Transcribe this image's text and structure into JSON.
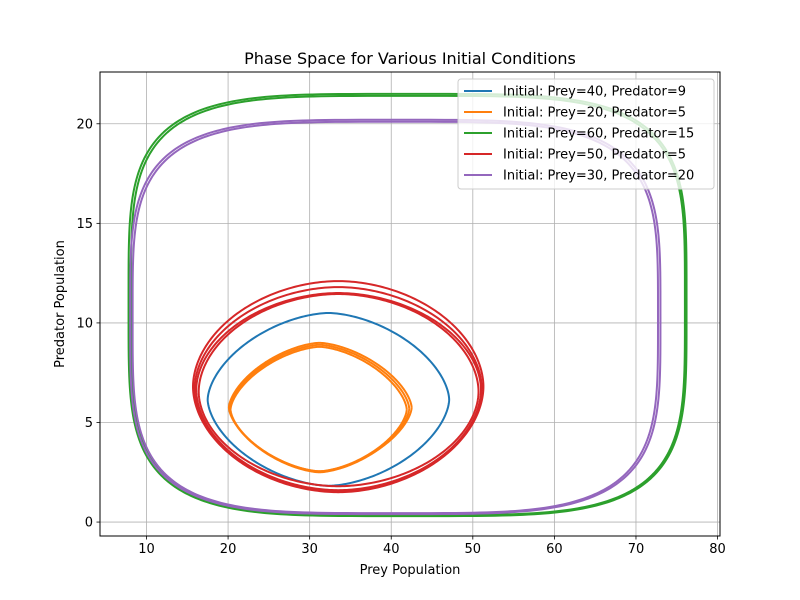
{
  "chart_data": {
    "type": "line",
    "title": "Phase Space for Various Initial Conditions",
    "xlabel": "Prey Population",
    "ylabel": "Predator Population",
    "xlim": [
      4.3,
      80.3
    ],
    "ylim": [
      -0.7,
      22.6
    ],
    "x_ticks": [
      10,
      20,
      30,
      40,
      50,
      60,
      70,
      80
    ],
    "y_ticks": [
      0,
      5,
      10,
      15,
      20
    ],
    "grid": true,
    "legend_position": "top-right",
    "series": [
      {
        "name": "Initial: Prey=40, Predator=9",
        "color": "#1f77b4",
        "loops": [
          {
            "cx": 32.3,
            "cy": 6.15,
            "ax": 14.8,
            "bx": 14.8,
            "ay": 4.35,
            "by": 4.33,
            "p": 1.7
          }
        ]
      },
      {
        "name": "Initial: Prey=20, Predator=5",
        "color": "#ff7f0e",
        "loops": [
          {
            "cx": 31.2,
            "cy": 5.7,
            "ax": 11.0,
            "bx": 11.0,
            "ay": 3.2,
            "by": 3.2,
            "p": 1.6
          },
          {
            "cx": 31.2,
            "cy": 5.65,
            "ax": 10.9,
            "bx": 10.7,
            "ay": 3.15,
            "by": 3.1,
            "p": 1.6
          },
          {
            "cx": 31.2,
            "cy": 5.75,
            "ax": 11.1,
            "bx": 11.3,
            "ay": 3.25,
            "by": 3.2,
            "p": 1.6
          }
        ]
      },
      {
        "name": "Initial: Prey=60, Predator=15",
        "color": "#2ca02c",
        "loops": [
          {
            "cx": 42.0,
            "cy": 10.9,
            "ax": 34.2,
            "bx": 34.2,
            "ay": 10.6,
            "by": 10.6,
            "p": 4.2
          },
          {
            "cx": 42.0,
            "cy": 10.9,
            "ax": 33.9,
            "bx": 34.0,
            "ay": 10.5,
            "by": 10.55,
            "p": 4.2
          }
        ]
      },
      {
        "name": "Initial: Prey=50, Predator=5",
        "color": "#d62728",
        "loops": [
          {
            "cx": 33.5,
            "cy": 6.8,
            "ax": 17.8,
            "bx": 17.8,
            "ay": 5.3,
            "by": 5.3,
            "p": 1.9
          },
          {
            "cx": 33.5,
            "cy": 6.65,
            "ax": 17.4,
            "bx": 17.5,
            "ay": 4.85,
            "by": 5.05,
            "p": 1.9
          },
          {
            "cx": 33.5,
            "cy": 6.55,
            "ax": 17.1,
            "bx": 17.2,
            "ay": 4.9,
            "by": 4.75,
            "p": 1.9
          },
          {
            "cx": 33.5,
            "cy": 6.7,
            "ax": 17.6,
            "bx": 17.6,
            "ay": 5.1,
            "by": 5.15,
            "p": 1.9
          }
        ]
      },
      {
        "name": "Initial: Prey=30, Predator=20",
        "color": "#9467bd",
        "loops": [
          {
            "cx": 40.5,
            "cy": 10.3,
            "ax": 32.5,
            "bx": 32.5,
            "ay": 9.9,
            "by": 9.9,
            "p": 4.0
          },
          {
            "cx": 40.5,
            "cy": 10.3,
            "ax": 32.2,
            "bx": 32.2,
            "ay": 9.8,
            "by": 9.85,
            "p": 4.0
          }
        ]
      }
    ]
  }
}
